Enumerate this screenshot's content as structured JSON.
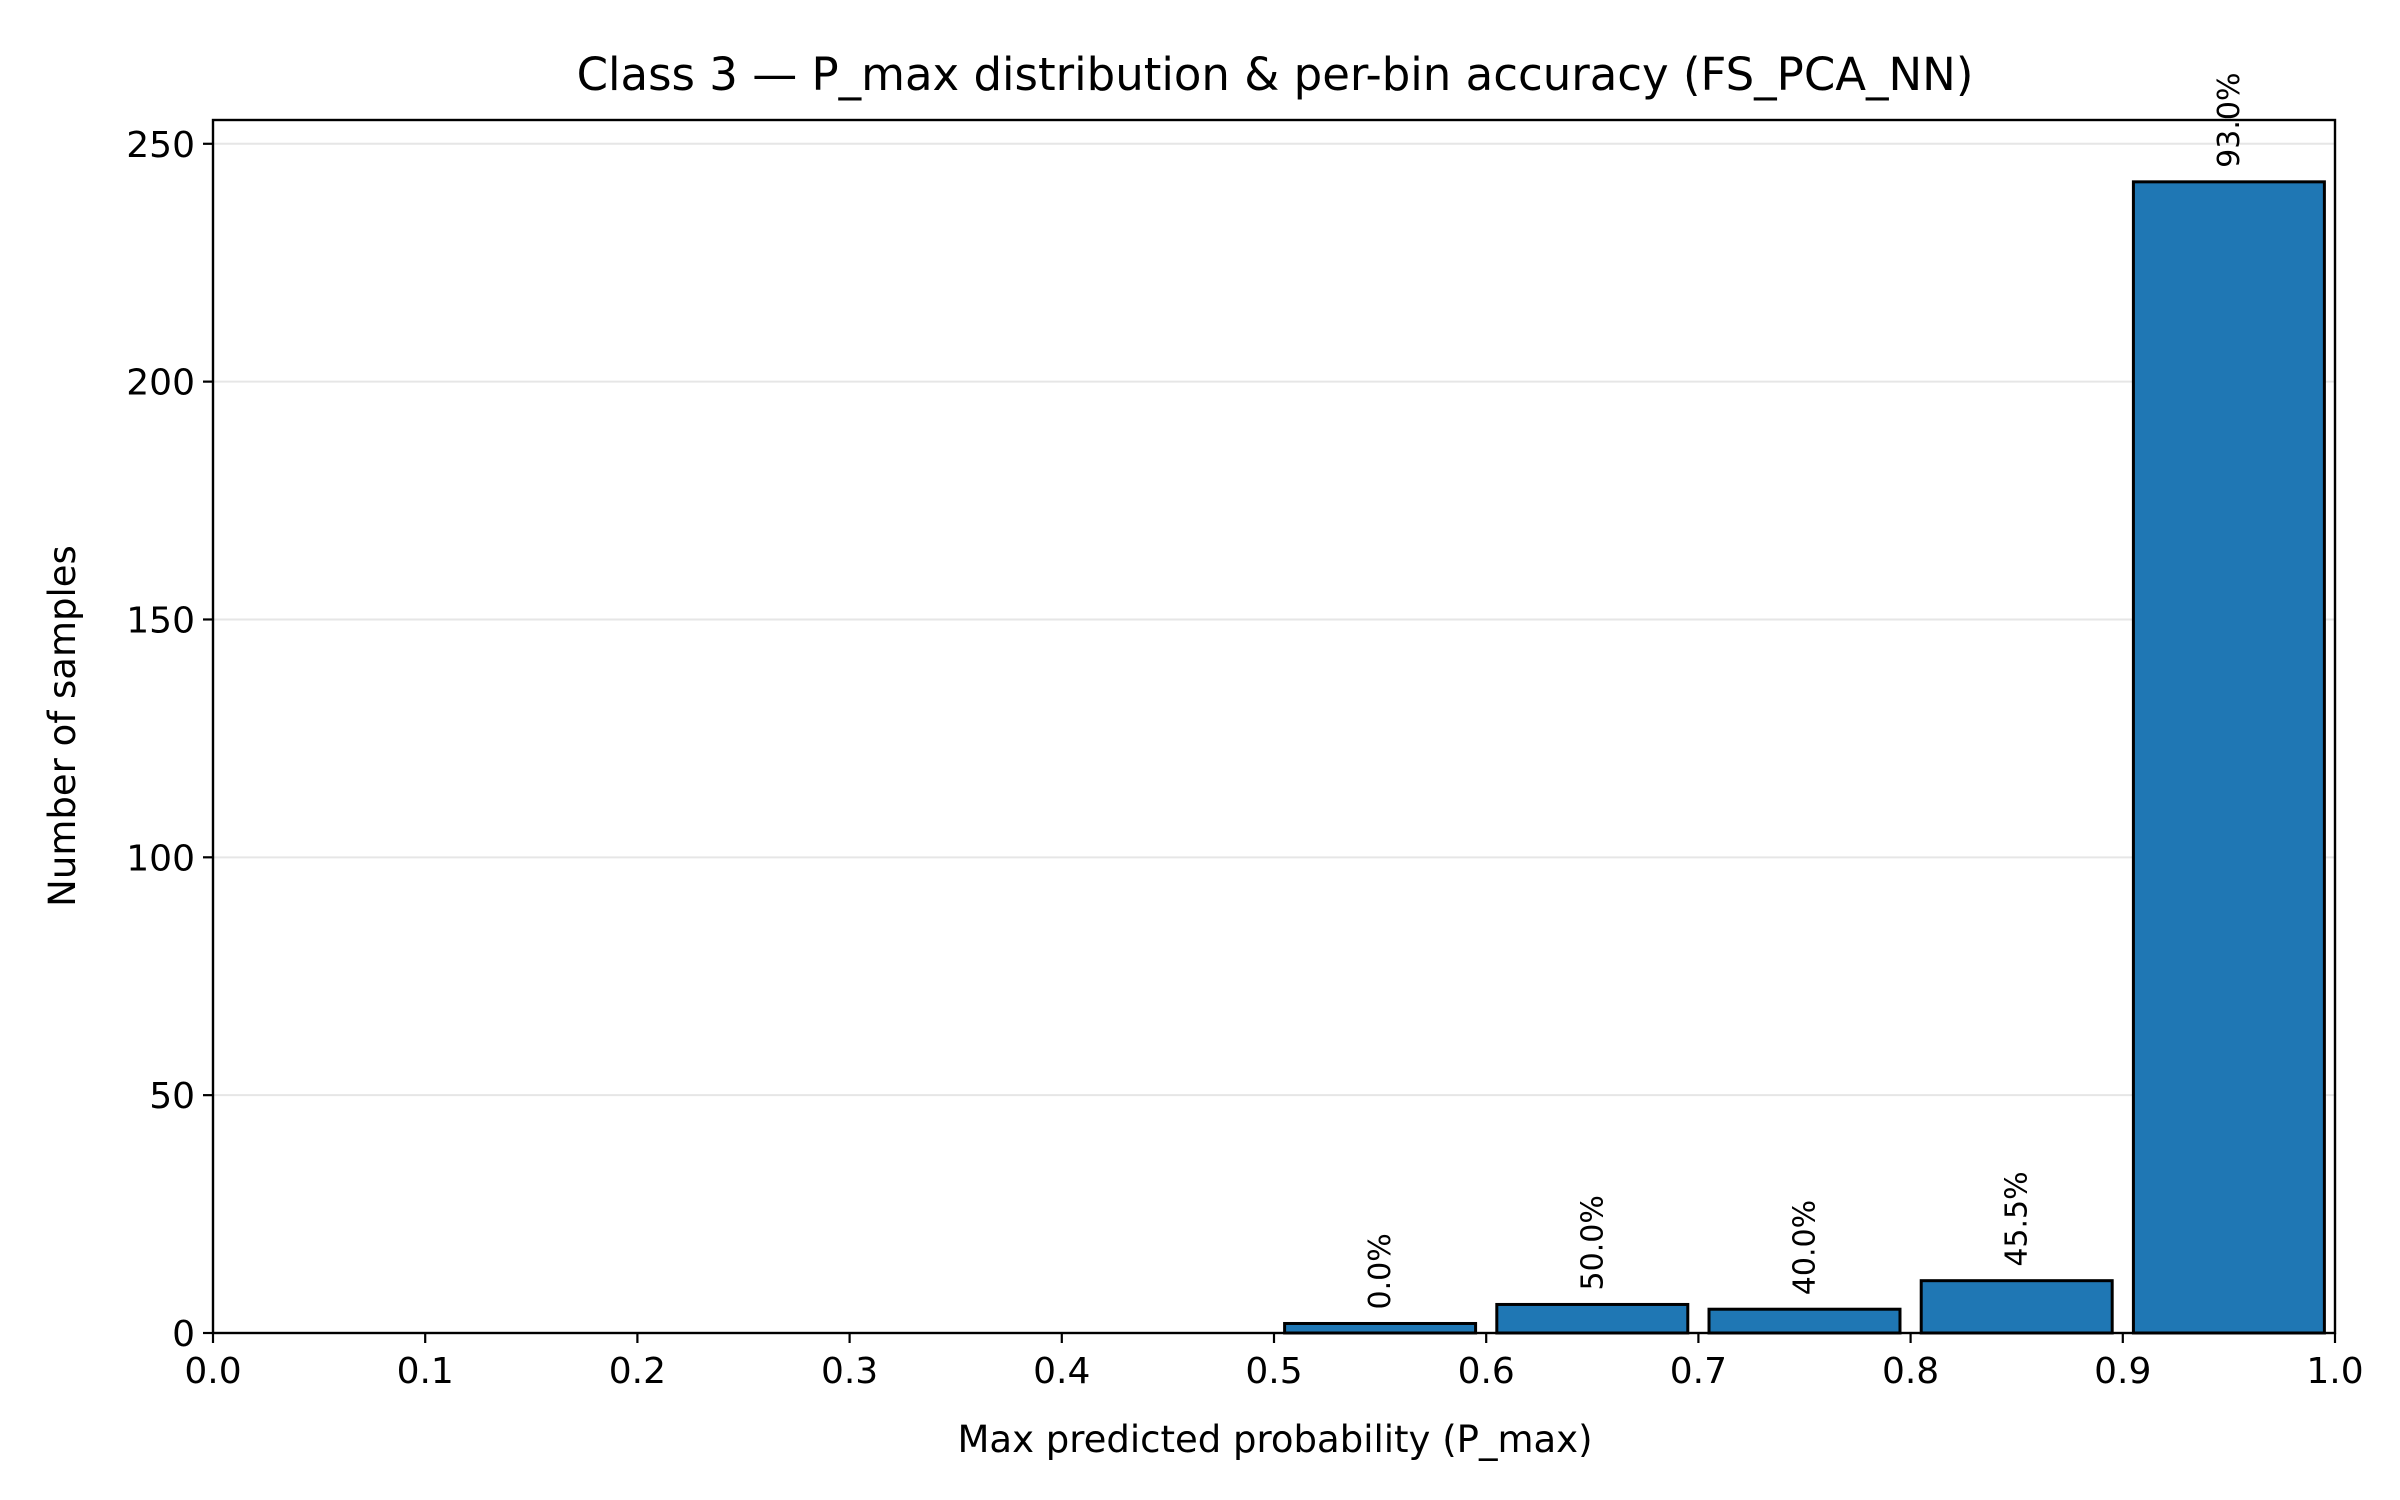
{
  "chart_data": {
    "type": "bar",
    "title": "Class 3 — P_max distribution & per-bin accuracy (FS_PCA_NN)",
    "xlabel": "Max predicted probability (P_max)",
    "ylabel": "Number of samples",
    "xlim": [
      0.0,
      1.0
    ],
    "ylim": [
      0,
      255
    ],
    "bin_width": 0.1,
    "bins": [
      {
        "start": 0.0,
        "end": 0.1,
        "count": 0,
        "accuracy_label": ""
      },
      {
        "start": 0.1,
        "end": 0.2,
        "count": 0,
        "accuracy_label": ""
      },
      {
        "start": 0.2,
        "end": 0.3,
        "count": 0,
        "accuracy_label": ""
      },
      {
        "start": 0.3,
        "end": 0.4,
        "count": 0,
        "accuracy_label": ""
      },
      {
        "start": 0.4,
        "end": 0.5,
        "count": 0,
        "accuracy_label": ""
      },
      {
        "start": 0.5,
        "end": 0.6,
        "count": 2,
        "accuracy_label": "0.0%"
      },
      {
        "start": 0.6,
        "end": 0.7,
        "count": 6,
        "accuracy_label": "50.0%"
      },
      {
        "start": 0.7,
        "end": 0.8,
        "count": 5,
        "accuracy_label": "40.0%"
      },
      {
        "start": 0.8,
        "end": 0.9,
        "count": 11,
        "accuracy_label": "45.5%"
      },
      {
        "start": 0.9,
        "end": 1.0,
        "count": 242,
        "accuracy_label": "93.0%"
      }
    ],
    "x_ticks": [
      {
        "value": 0.0,
        "label": "0.0"
      },
      {
        "value": 0.1,
        "label": "0.1"
      },
      {
        "value": 0.2,
        "label": "0.2"
      },
      {
        "value": 0.3,
        "label": "0.3"
      },
      {
        "value": 0.4,
        "label": "0.4"
      },
      {
        "value": 0.5,
        "label": "0.5"
      },
      {
        "value": 0.6,
        "label": "0.6"
      },
      {
        "value": 0.7,
        "label": "0.7"
      },
      {
        "value": 0.8,
        "label": "0.8"
      },
      {
        "value": 0.9,
        "label": "0.9"
      },
      {
        "value": 1.0,
        "label": "1.0"
      }
    ],
    "y_ticks": [
      {
        "value": 0,
        "label": "0"
      },
      {
        "value": 50,
        "label": "50"
      },
      {
        "value": 100,
        "label": "100"
      },
      {
        "value": 150,
        "label": "150"
      },
      {
        "value": 200,
        "label": "200"
      },
      {
        "value": 250,
        "label": "250"
      }
    ],
    "grid": "y-major",
    "colors": {
      "bar": "#1f77b4",
      "bar_edge": "#000000",
      "grid": "#e6e6e6"
    }
  }
}
